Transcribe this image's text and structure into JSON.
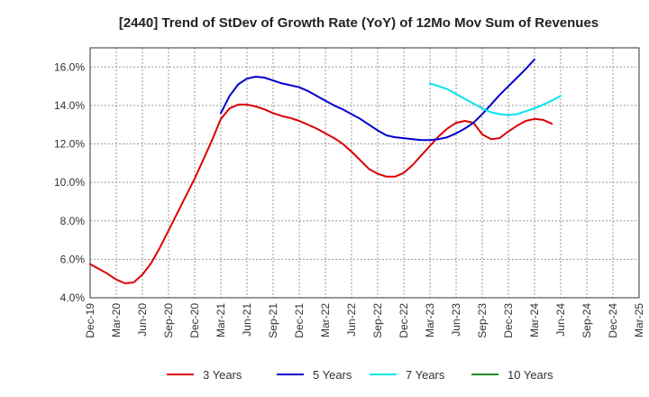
{
  "chart_data": {
    "type": "line",
    "title": "[2440]  Trend of StDev of Growth Rate (YoY) of 12Mo Mov Sum of Revenues",
    "xlabel": "",
    "ylabel": "",
    "ylim": [
      4.0,
      17.0
    ],
    "yticks": [
      4.0,
      6.0,
      8.0,
      10.0,
      12.0,
      14.0,
      16.0
    ],
    "ytick_labels": [
      "4.0%",
      "6.0%",
      "8.0%",
      "10.0%",
      "12.0%",
      "14.0%",
      "16.0%"
    ],
    "x_range": [
      0,
      63
    ],
    "xtick_labels": [
      "Dec-19",
      "Mar-20",
      "Jun-20",
      "Sep-20",
      "Dec-20",
      "Mar-21",
      "Jun-21",
      "Sep-21",
      "Dec-21",
      "Mar-22",
      "Jun-22",
      "Sep-22",
      "Dec-22",
      "Mar-23",
      "Jun-23",
      "Sep-23",
      "Dec-23",
      "Mar-24",
      "Jun-24",
      "Sep-24",
      "Dec-24",
      "Mar-25"
    ],
    "grid": true,
    "legend_position": "bottom",
    "series": [
      {
        "name": "3 Years",
        "color": "#dd0000",
        "start_index": 0,
        "values": [
          5.75,
          5.5,
          5.25,
          4.95,
          4.75,
          4.8,
          5.2,
          5.8,
          6.6,
          7.5,
          8.4,
          9.3,
          10.2,
          11.2,
          12.2,
          13.3,
          13.85,
          14.05,
          14.05,
          13.95,
          13.8,
          13.6,
          13.45,
          13.35,
          13.2,
          13.0,
          12.8,
          12.55,
          12.3,
          12.0,
          11.6,
          11.15,
          10.7,
          10.45,
          10.3,
          10.3,
          10.5,
          10.9,
          11.4,
          11.9,
          12.4,
          12.8,
          13.1,
          13.2,
          13.1,
          12.5,
          12.25,
          12.3,
          12.65,
          12.95,
          13.2,
          13.3,
          13.25,
          13.05
        ]
      },
      {
        "name": "5 Years",
        "color": "#0000cc",
        "start_index": 15,
        "values": [
          13.6,
          14.5,
          15.1,
          15.4,
          15.5,
          15.45,
          15.3,
          15.15,
          15.05,
          14.95,
          14.75,
          14.5,
          14.25,
          14.0,
          13.8,
          13.55,
          13.3,
          13.0,
          12.7,
          12.45,
          12.35,
          12.3,
          12.25,
          12.2,
          12.2,
          12.25,
          12.35,
          12.55,
          12.8,
          13.1,
          13.55,
          14.05,
          14.55,
          15.0,
          15.45,
          15.9,
          16.4
        ]
      },
      {
        "name": "7 Years",
        "color": "#00e5ee",
        "start_index": 39,
        "values": [
          15.15,
          15.0,
          14.85,
          14.6,
          14.35,
          14.1,
          13.85,
          13.65,
          13.55,
          13.5,
          13.55,
          13.7,
          13.85,
          14.05,
          14.25,
          14.5
        ]
      },
      {
        "name": "10 Years",
        "color": "#228b22",
        "start_index": 0,
        "values": []
      }
    ]
  }
}
